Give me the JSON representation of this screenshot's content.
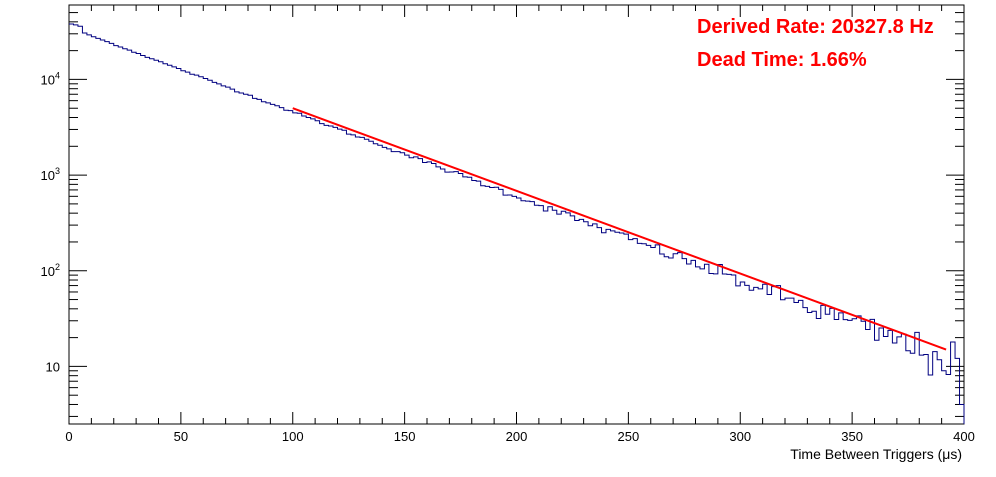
{
  "chart_data": {
    "type": "histogram",
    "xlabel": "Time Between Triggers (μs)",
    "ylabel": "",
    "xlim": [
      0,
      400
    ],
    "ylim": [
      2.5,
      60000
    ],
    "y_scale": "log",
    "x_ticks": [
      0,
      50,
      100,
      150,
      200,
      250,
      300,
      350,
      400
    ],
    "x_tick_labels": [
      "0",
      "50",
      "100",
      "150",
      "200",
      "250",
      "300",
      "350",
      "400"
    ],
    "y_ticks": [
      10,
      100,
      1000,
      10000
    ],
    "y_tick_labels": [
      "10",
      "10",
      "10",
      "10"
    ],
    "y_tick_exponents": [
      "",
      "2",
      "3",
      "4"
    ],
    "grid": false,
    "annotations": [
      "Derived Rate: 20327.8 Hz",
      "Dead Time: 1.66%"
    ],
    "histogram": {
      "color": "#000080",
      "bin_width": 2,
      "bins_start": 0,
      "model_start_value": 35000,
      "decay_per_us": 0.0203278,
      "first_bins": [
        38000,
        37000,
        36000
      ],
      "counts_at": {
        "0": 38000,
        "50": 12600,
        "100": 4900,
        "150": 1900,
        "200": 680,
        "250": 265,
        "300": 105,
        "350": 38,
        "398": 14
      }
    },
    "fit": {
      "color": "#ff0000",
      "x_range": [
        100,
        392
      ],
      "y_start": 5000,
      "y_end": 15
    }
  }
}
